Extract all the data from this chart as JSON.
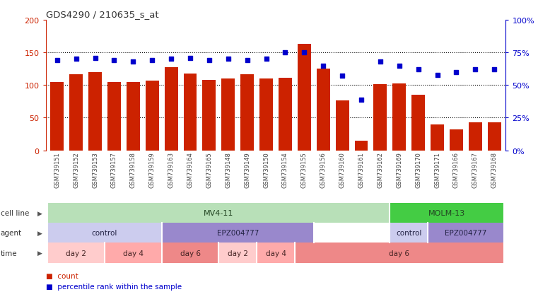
{
  "title": "GDS4290 / 210635_s_at",
  "samples": [
    "GSM739151",
    "GSM739152",
    "GSM739153",
    "GSM739157",
    "GSM739158",
    "GSM739159",
    "GSM739163",
    "GSM739164",
    "GSM739165",
    "GSM739148",
    "GSM739149",
    "GSM739150",
    "GSM739154",
    "GSM739155",
    "GSM739156",
    "GSM739160",
    "GSM739161",
    "GSM739162",
    "GSM739169",
    "GSM739170",
    "GSM739171",
    "GSM739166",
    "GSM739167",
    "GSM739168"
  ],
  "counts": [
    105,
    117,
    120,
    105,
    105,
    107,
    127,
    118,
    108,
    110,
    117,
    110,
    111,
    163,
    125,
    76,
    15,
    101,
    102,
    85,
    40,
    32,
    43,
    43
  ],
  "percentiles": [
    69,
    70,
    71,
    69,
    68,
    69,
    70,
    71,
    69,
    70,
    69,
    70,
    75,
    75,
    65,
    57,
    39,
    68,
    65,
    62,
    58,
    60,
    62,
    62
  ],
  "bar_color": "#cc2200",
  "dot_color": "#0000cc",
  "ylim_left": [
    0,
    200
  ],
  "ylim_right": [
    0,
    100
  ],
  "yticks_left": [
    0,
    50,
    100,
    150,
    200
  ],
  "yticks_left_labels": [
    "0",
    "50",
    "100",
    "150",
    "200"
  ],
  "yticks_right": [
    0,
    25,
    50,
    75,
    100
  ],
  "yticks_right_labels": [
    "0%",
    "25%",
    "50%",
    "75%",
    "100%"
  ],
  "cell_line_regions": [
    {
      "label": "MV4-11",
      "start": 0,
      "end": 18,
      "color": "#b8e0b8"
    },
    {
      "label": "MOLM-13",
      "start": 18,
      "end": 24,
      "color": "#44cc44"
    }
  ],
  "agent_regions": [
    {
      "label": "control",
      "start": 0,
      "end": 6,
      "color": "#ccccee"
    },
    {
      "label": "EPZ004777",
      "start": 6,
      "end": 14,
      "color": "#9988cc"
    },
    {
      "label": "control",
      "start": 18,
      "end": 20,
      "color": "#ccccee"
    },
    {
      "label": "EPZ004777",
      "start": 20,
      "end": 24,
      "color": "#9988cc"
    }
  ],
  "time_regions": [
    {
      "label": "day 2",
      "start": 0,
      "end": 3,
      "color": "#ffcccc"
    },
    {
      "label": "day 4",
      "start": 3,
      "end": 6,
      "color": "#ffaaaa"
    },
    {
      "label": "day 6",
      "start": 6,
      "end": 9,
      "color": "#ee8888"
    },
    {
      "label": "day 2",
      "start": 9,
      "end": 11,
      "color": "#ffcccc"
    },
    {
      "label": "day 4",
      "start": 11,
      "end": 13,
      "color": "#ffaaaa"
    },
    {
      "label": "day 6",
      "start": 13,
      "end": 24,
      "color": "#ee8888"
    }
  ],
  "bg_color": "#ffffff"
}
